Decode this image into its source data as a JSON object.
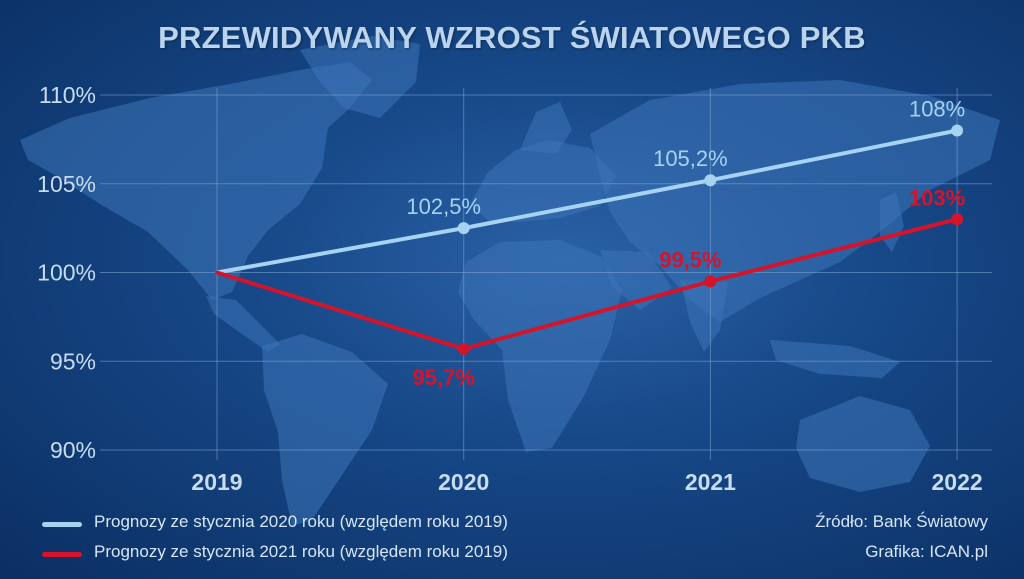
{
  "title": "PRZEWIDYWANY WZROST ŚWIATOWEGO PKB",
  "chart_data": {
    "type": "line",
    "x": [
      "2019",
      "2020",
      "2021",
      "2022"
    ],
    "ylim": [
      90,
      110
    ],
    "yticks": [
      "110%",
      "105%",
      "100%",
      "95%",
      "90%"
    ],
    "grid": true,
    "series": [
      {
        "name": "Prognozy ze stycznia 2020 roku (względem roku 2019)",
        "color": "#a6d3f2",
        "values": [
          100,
          102.5,
          105.2,
          108
        ],
        "labels": [
          "",
          "102,5%",
          "105,2%",
          "108%"
        ]
      },
      {
        "name": "Prognozy ze stycznia 2021 roku (względem roku 2019)",
        "color": "#d4142a",
        "values": [
          100,
          95.7,
          99.5,
          103
        ],
        "labels": [
          "",
          "95,7%",
          "99,5%",
          "103%"
        ]
      }
    ]
  },
  "source": "Źródło: Bank Światowy",
  "graphics": "Grafika: ICAN.pl"
}
